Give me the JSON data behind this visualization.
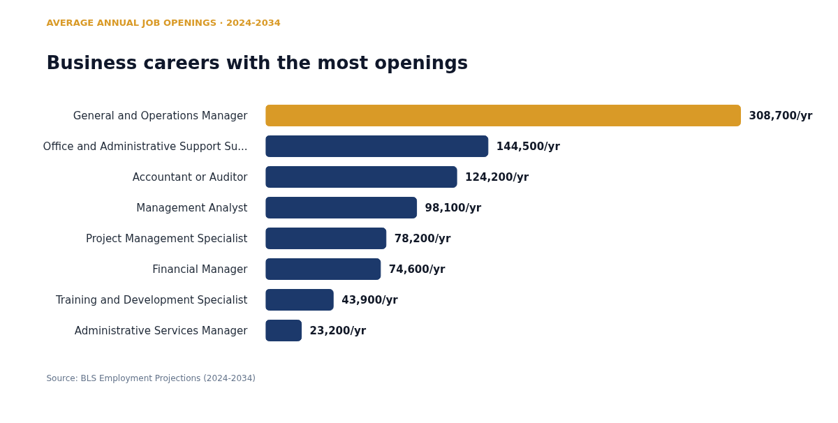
{
  "chart_data": {
    "type": "bar",
    "orientation": "horizontal",
    "subtitle": "AVERAGE ANNUAL JOB OPENINGS · 2024-2034",
    "title": "Business careers with the most openings",
    "categories": [
      "General and Operations Manager",
      "Office and Administrative Support Su...",
      "Accountant or Auditor",
      "Management Analyst",
      "Project Management Specialist",
      "Financial Manager",
      "Training and Development Specialist",
      "Administrative Services Manager"
    ],
    "values": [
      308700,
      144500,
      124200,
      98100,
      78200,
      74600,
      43900,
      23200
    ],
    "value_labels": [
      "308,700/yr",
      "144,500/yr",
      "124,200/yr",
      "98,100/yr",
      "78,200/yr",
      "74,600/yr",
      "43,900/yr",
      "23,200/yr"
    ],
    "colors": [
      "#d99a27",
      "#1c396b",
      "#1c396b",
      "#1c396b",
      "#1c396b",
      "#1c396b",
      "#1c396b",
      "#1c396b"
    ],
    "annotations": [
      "Source: BLS Employment Projections (2024-2034)"
    ],
    "tick_labels": "y",
    "grid": false
  }
}
